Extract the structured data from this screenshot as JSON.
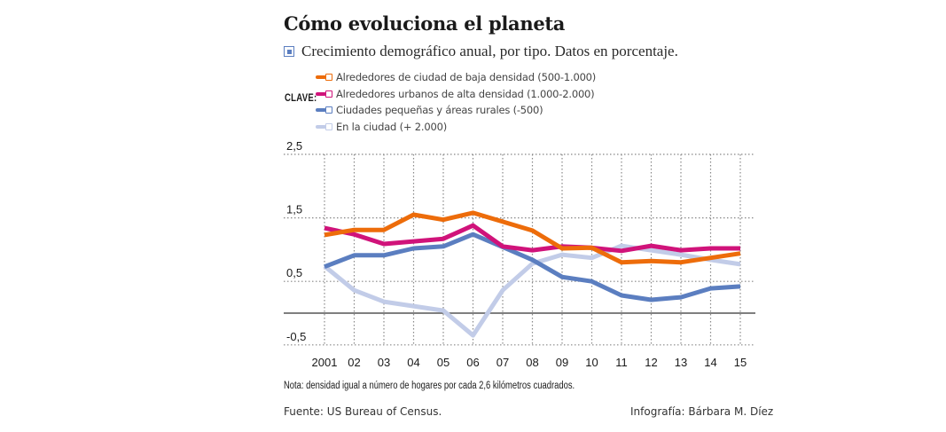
{
  "header": {
    "title": "Cómo evoluciona el planeta",
    "subtitle": "Crecimiento demográfico anual, por tipo. Datos en porcentaje.",
    "subtitle_icon": "square-bullet-icon"
  },
  "legend": {
    "key_label": "CLAVE:",
    "items": [
      {
        "label": "Alrededores de ciudad de baja densidad (500-1.000)",
        "color": "#ED6C0A"
      },
      {
        "label": "Alrededores urbanos de alta densidad  (1.000-2.000)",
        "color": "#D0137A"
      },
      {
        "label": "Ciudades pequeñas y áreas rurales (-500)",
        "color": "#5B7EC0"
      },
      {
        "label": "En la ciudad (+ 2.000)",
        "color": "#C2CCE8"
      }
    ]
  },
  "chart_data": {
    "type": "line",
    "title": "Cómo evoluciona el planeta",
    "subtitle": "Crecimiento demográfico anual, por tipo. Datos en porcentaje.",
    "xlabel": "",
    "ylabel": "",
    "categories": [
      "2001",
      "02",
      "03",
      "04",
      "05",
      "06",
      "07",
      "08",
      "09",
      "10",
      "11",
      "12",
      "13",
      "14",
      "15"
    ],
    "ylim": [
      -0.5,
      2.5
    ],
    "yticks": [
      -0.5,
      0.5,
      1.5,
      2.5
    ],
    "ytick_labels": [
      "-0,5",
      "0,5",
      "1,5",
      "2,5"
    ],
    "zero_line": true,
    "grid": "dotted",
    "legend_position": "top-left",
    "series": [
      {
        "name": "Alrededores de ciudad de baja densidad (500-1.000)",
        "color": "#ED6C0A",
        "values": [
          1.23,
          1.31,
          1.31,
          1.55,
          1.47,
          1.58,
          1.44,
          1.3,
          1.02,
          1.03,
          0.8,
          0.82,
          0.8,
          0.87,
          0.94
        ]
      },
      {
        "name": "Alrededores urbanos de alta densidad (1.000-2.000)",
        "color": "#D0137A",
        "values": [
          1.34,
          1.24,
          1.09,
          1.13,
          1.17,
          1.38,
          1.05,
          0.99,
          1.05,
          1.03,
          0.98,
          1.06,
          0.99,
          1.02,
          1.02
        ]
      },
      {
        "name": "Ciudades pequeñas y áreas rurales (-500)",
        "color": "#5B7EC0",
        "values": [
          0.73,
          0.91,
          0.91,
          1.02,
          1.05,
          1.24,
          1.04,
          0.84,
          0.57,
          0.5,
          0.28,
          0.21,
          0.25,
          0.39,
          0.42
        ]
      },
      {
        "name": "En la ciudad (+ 2.000)",
        "color": "#C2CCE8",
        "values": [
          0.74,
          0.36,
          0.18,
          0.11,
          0.04,
          -0.35,
          0.36,
          0.78,
          0.92,
          0.87,
          1.06,
          0.99,
          0.92,
          0.84,
          0.77
        ]
      }
    ]
  },
  "footer": {
    "note": "Nota: densidad igual a número de hogares por cada 2,6 kilómetros cuadrados.",
    "source": "Fuente: US Bureau of Census.",
    "credit": "Infografía: Bárbara M. Díez"
  }
}
